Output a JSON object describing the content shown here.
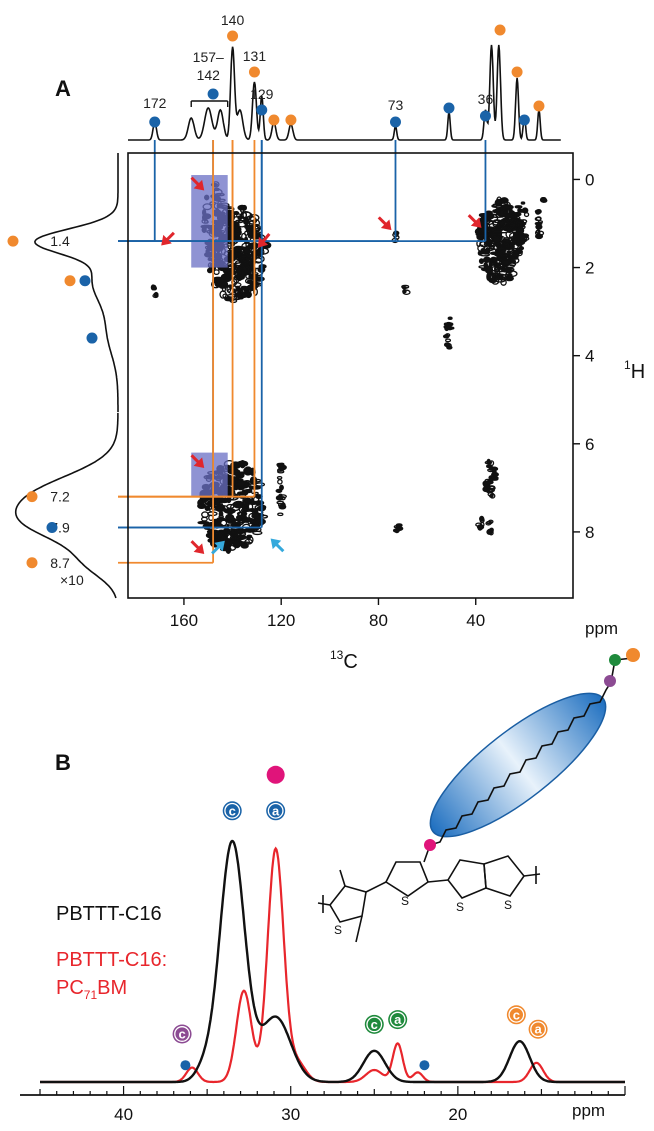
{
  "figure": {
    "panel_a_label": "A",
    "panel_b_label": "B"
  },
  "colors": {
    "orange": "#f0892e",
    "blue": "#1a63a8",
    "red_arrow": "#e0262c",
    "cyan_arrow": "#35a9dc",
    "highlight": "#6a6fc4",
    "magenta": "#e0147a",
    "green": "#1f8a3c",
    "purple": "#8c4b93",
    "spectrum_black": "#111111",
    "spectrum_red": "#e8262c"
  },
  "chart_data": [
    {
      "type": "heatmap",
      "panel": "A",
      "xlabel_sup": "13",
      "xlabel": "C",
      "ylabel_sup": "1",
      "ylabel": "H",
      "unit": "ppm",
      "xlim": [
        183,
        0
      ],
      "ylim": [
        -0.6,
        9.5
      ],
      "xticks": [
        160,
        120,
        80,
        40
      ],
      "yticks": [
        0,
        2,
        4,
        6,
        8
      ],
      "top_projection_labels": [
        {
          "text": "172",
          "x": 172
        },
        {
          "text": "157–",
          "x": 150
        },
        {
          "text": "142",
          "x": 150
        },
        {
          "text": "140",
          "x": 140
        },
        {
          "text": "131",
          "x": 131
        },
        {
          "text": "129",
          "x": 128
        },
        {
          "text": "73",
          "x": 73
        },
        {
          "text": "36",
          "x": 36
        }
      ],
      "top_dots": [
        {
          "x": 172,
          "color": "blue"
        },
        {
          "x": 148,
          "color": "blue"
        },
        {
          "x": 140,
          "color": "orange"
        },
        {
          "x": 131,
          "color": "orange"
        },
        {
          "x": 128,
          "color": "blue"
        },
        {
          "x": 123,
          "color": "orange"
        },
        {
          "x": 116,
          "color": "orange"
        },
        {
          "x": 73,
          "color": "blue"
        },
        {
          "x": 51,
          "color": "blue"
        },
        {
          "x": 36,
          "color": "blue"
        },
        {
          "x": 30,
          "color": "orange"
        },
        {
          "x": 23,
          "color": "orange"
        },
        {
          "x": 20,
          "color": "blue"
        },
        {
          "x": 14,
          "color": "orange"
        }
      ],
      "side_projection_labels": [
        {
          "text": "1.4",
          "y": 1.4
        },
        {
          "text": "7.2",
          "y": 7.2
        },
        {
          "text": "7.9",
          "y": 7.9
        },
        {
          "text": "8.7",
          "y": 8.7
        }
      ],
      "side_dots": [
        {
          "y": 1.4,
          "color": "orange"
        },
        {
          "y": 2.3,
          "color": "orange"
        },
        {
          "y": 2.3,
          "color": "blue"
        },
        {
          "y": 3.6,
          "color": "blue"
        },
        {
          "y": 7.2,
          "color": "orange"
        },
        {
          "y": 7.9,
          "color": "blue"
        },
        {
          "y": 8.7,
          "color": "orange"
        }
      ],
      "side_scale_note": "×10",
      "correlations": [
        {
          "x": 172,
          "y": 1.4,
          "color": "blue"
        },
        {
          "x": 140,
          "y": 1.4,
          "color": "orange"
        },
        {
          "x": 128,
          "y": 1.4,
          "color": "blue"
        },
        {
          "x": 73,
          "y": 1.4,
          "color": "blue"
        },
        {
          "x": 36,
          "y": 1.4,
          "color": "blue"
        },
        {
          "x": 131,
          "y": 7.2,
          "color": "orange"
        },
        {
          "x": 140,
          "y": 7.2,
          "color": "orange"
        },
        {
          "x": 148,
          "y": 7.9,
          "color": "blue"
        },
        {
          "x": 128,
          "y": 7.9,
          "color": "blue"
        },
        {
          "x": 148,
          "y": 8.7,
          "color": "orange"
        }
      ],
      "highlight_boxes": [
        {
          "x": [
            157,
            142
          ],
          "y": [
            -0.1,
            2.0
          ]
        },
        {
          "x": [
            157,
            142
          ],
          "y": [
            6.2,
            7.2
          ]
        }
      ]
    },
    {
      "type": "line",
      "panel": "B",
      "xlabel": "ppm",
      "xlim": [
        45,
        10
      ],
      "xticks": [
        40,
        30,
        20
      ],
      "series": [
        {
          "name": "PBTTT-C16",
          "color": "#111111",
          "peaks": [
            {
              "x": 33.5,
              "height": 1.0,
              "width": 0.75
            },
            {
              "x": 30.9,
              "height": 0.27,
              "width": 0.9
            },
            {
              "x": 35.2,
              "height": 0.05,
              "width": 0.5
            },
            {
              "x": 25.0,
              "height": 0.13,
              "width": 0.65
            },
            {
              "x": 16.3,
              "height": 0.17,
              "width": 0.6
            }
          ]
        },
        {
          "name_line1": "PBTTT-C16:",
          "name_line2": "PC",
          "name_sub": "71",
          "name_line2_tail": "BM",
          "color": "#e8262c",
          "peaks": [
            {
              "x": 30.9,
              "height": 0.97,
              "width": 0.48
            },
            {
              "x": 32.8,
              "height": 0.38,
              "width": 0.45
            },
            {
              "x": 29.6,
              "height": 0.08,
              "width": 0.5
            },
            {
              "x": 35.9,
              "height": 0.06,
              "width": 0.35
            },
            {
              "x": 23.6,
              "height": 0.16,
              "width": 0.3
            },
            {
              "x": 22.4,
              "height": 0.04,
              "width": 0.3
            },
            {
              "x": 25.0,
              "height": 0.05,
              "width": 0.5
            },
            {
              "x": 15.3,
              "height": 0.08,
              "width": 0.4
            }
          ]
        }
      ],
      "peak_markers": [
        {
          "x": 33.5,
          "letter": "c",
          "color": "blue",
          "level": 1.13
        },
        {
          "x": 30.9,
          "letter": "a",
          "color": "blue",
          "level": 1.13
        },
        {
          "x": 30.9,
          "letter": "",
          "color": "magenta",
          "level": 1.28
        },
        {
          "x": 36.5,
          "letter": "c",
          "color": "purple",
          "level": 0.2
        },
        {
          "x": 36.3,
          "letter": "",
          "color": "blue",
          "level": 0.07
        },
        {
          "x": 25.0,
          "letter": "c",
          "color": "green",
          "level": 0.24
        },
        {
          "x": 23.6,
          "letter": "a",
          "color": "green",
          "level": 0.26
        },
        {
          "x": 22.0,
          "letter": "",
          "color": "blue",
          "level": 0.07
        },
        {
          "x": 16.5,
          "letter": "c",
          "color": "orange",
          "level": 0.28
        },
        {
          "x": 15.2,
          "letter": "a",
          "color": "orange",
          "level": 0.22
        }
      ]
    }
  ]
}
